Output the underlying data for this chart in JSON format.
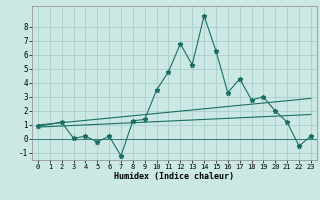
{
  "title": "",
  "xlabel": "Humidex (Indice chaleur)",
  "ylabel": "",
  "bg_color": "#cce8e4",
  "grid_color": "#aaceca",
  "line_color": "#1a6e64",
  "xlim": [
    -0.5,
    23.5
  ],
  "ylim": [
    -1.5,
    9.5
  ],
  "xticks": [
    0,
    1,
    2,
    3,
    4,
    5,
    6,
    7,
    8,
    9,
    10,
    11,
    12,
    13,
    14,
    15,
    16,
    17,
    18,
    19,
    20,
    21,
    22,
    23
  ],
  "yticks": [
    -1,
    0,
    1,
    2,
    3,
    4,
    5,
    6,
    7,
    8
  ],
  "main_x": [
    0,
    2,
    3,
    4,
    5,
    6,
    7,
    8,
    9,
    10,
    11,
    12,
    13,
    14,
    15,
    16,
    17,
    18,
    19,
    20,
    21,
    22,
    23
  ],
  "main_y": [
    0.9,
    1.2,
    0.05,
    0.2,
    -0.2,
    0.2,
    -1.2,
    1.3,
    1.4,
    3.5,
    4.8,
    6.8,
    5.3,
    8.8,
    6.3,
    3.3,
    4.3,
    2.8,
    3.0,
    2.0,
    1.2,
    -0.5,
    0.2
  ],
  "trend1_x": [
    0,
    23
  ],
  "trend1_y": [
    1.0,
    2.9
  ],
  "trend2_x": [
    0,
    23
  ],
  "trend2_y": [
    0.85,
    1.75
  ],
  "figsize": [
    3.2,
    2.0
  ],
  "dpi": 100
}
